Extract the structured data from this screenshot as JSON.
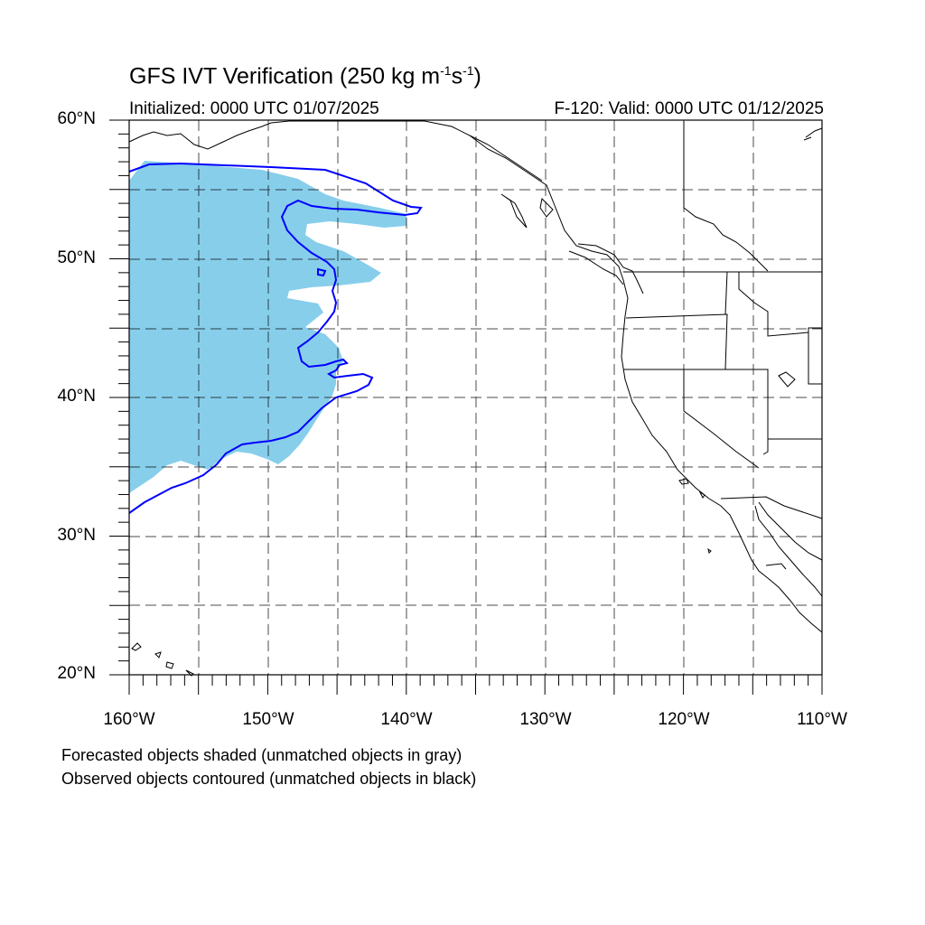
{
  "title": {
    "main": "GFS IVT Verification (250 kg m",
    "sup1": "-1",
    "mid": "s",
    "sup2": "-1",
    "end": ")"
  },
  "initialized": "Initialized: 0000 UTC 01/07/2025",
  "valid": "F-120: Valid: 0000 UTC 01/12/2025",
  "lat_labels": [
    "60°N",
    "50°N",
    "40°N",
    "30°N",
    "20°N"
  ],
  "lon_labels": [
    "160°W",
    "150°W",
    "140°W",
    "130°W",
    "120°W",
    "110°W"
  ],
  "footnotes": [
    "Forecasted objects shaded (unmatched objects in gray)",
    "Observed objects contoured (unmatched objects in black)"
  ],
  "colors": {
    "forecast_fill": "#87ceeb",
    "observed_contour": "#0000ff",
    "coastline": "#000000",
    "grid": "#000000"
  },
  "map": {
    "projection": "cylindrical-equidistant",
    "lon_range": [
      -160,
      -110
    ],
    "lat_range": [
      20,
      60
    ],
    "grid_style": "dashed"
  }
}
